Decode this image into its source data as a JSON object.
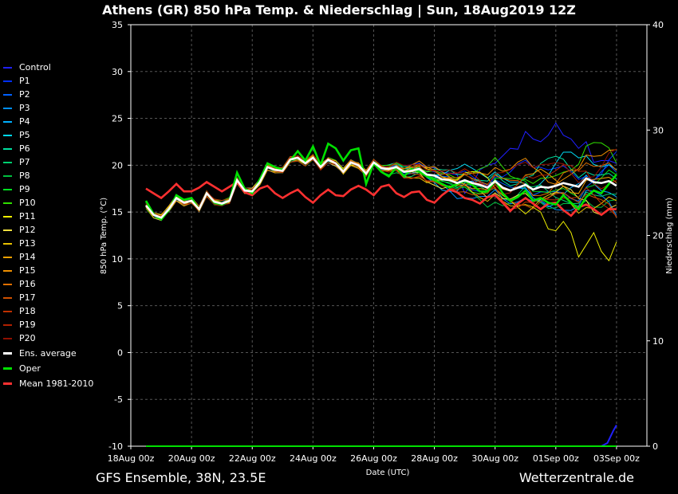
{
  "header": {
    "title": "Athens  (GR)  850 hPa Temp. & Niederschlag | Sun, 18Aug2019 12Z"
  },
  "footer": {
    "left": "GFS Ensemble, 38N, 23.5E",
    "right": "Wetterzentrale.de"
  },
  "chart_data": {
    "type": "line",
    "xlabel": "Date (UTC)",
    "ylabel": "850 hPa Temp. (°C)",
    "y2label": "Niederschlag (mm)",
    "ylim": [
      -10,
      35
    ],
    "y2lim": [
      0,
      40
    ],
    "yticks": [
      35,
      30,
      25,
      20,
      15,
      10,
      5,
      0,
      -5,
      -10
    ],
    "y2ticks": [
      40,
      30,
      20,
      10,
      0
    ],
    "xticks": [
      "18Aug 00z",
      "20Aug 00z",
      "22Aug 00z",
      "24Aug 00z",
      "26Aug 00z",
      "28Aug 00z",
      "30Aug 00z",
      "01Sep 00z",
      "03Sep 00z"
    ],
    "x_start": "18Aug 00z",
    "x_end": "03Sep 24z",
    "grid": true,
    "legend_position": "left",
    "series": [
      {
        "name": "Control",
        "color": "#2020ff"
      },
      {
        "name": "P1",
        "color": "#0030ff"
      },
      {
        "name": "P2",
        "color": "#0060ff"
      },
      {
        "name": "P3",
        "color": "#0090ff"
      },
      {
        "name": "P4",
        "color": "#00b0ff"
      },
      {
        "name": "P5",
        "color": "#00d8f0"
      },
      {
        "name": "P6",
        "color": "#00e0a0"
      },
      {
        "name": "P7",
        "color": "#00d070"
      },
      {
        "name": "P8",
        "color": "#00c040"
      },
      {
        "name": "P9",
        "color": "#00e020"
      },
      {
        "name": "P10",
        "color": "#30e000"
      },
      {
        "name": "P11",
        "color": "#f0f000"
      },
      {
        "name": "P12",
        "color": "#f0e040"
      },
      {
        "name": "P13",
        "color": "#e8c000"
      },
      {
        "name": "P14",
        "color": "#f0a000"
      },
      {
        "name": "P15",
        "color": "#f09000"
      },
      {
        "name": "P16",
        "color": "#e07000"
      },
      {
        "name": "P17",
        "color": "#d05000"
      },
      {
        "name": "P18",
        "color": "#c03000"
      },
      {
        "name": "P19",
        "color": "#b02000"
      },
      {
        "name": "P20",
        "color": "#901000"
      },
      {
        "name": "Ens. average",
        "color": "#ffffff"
      },
      {
        "name": "Oper",
        "color": "#00e000"
      },
      {
        "name": "Mean 1981-2010",
        "color": "#ff3030"
      }
    ],
    "oper": {
      "x_days": [
        0.5,
        0.75,
        1,
        1.25,
        1.5,
        1.75,
        2,
        2.25,
        2.5,
        2.75,
        3,
        3.25,
        3.5,
        3.75,
        4,
        4.25,
        4.5,
        4.75,
        5,
        5.25,
        5.5,
        5.75,
        6,
        6.25,
        6.5,
        6.75,
        7,
        7.25,
        7.5,
        7.75,
        8,
        8.25,
        8.5,
        8.75,
        9,
        9.25,
        9.5,
        9.75,
        10,
        10.25,
        10.5,
        10.75,
        11,
        11.25,
        11.5,
        11.75,
        12,
        12.25,
        12.5,
        12.75,
        13,
        13.25,
        13.5,
        13.75,
        14,
        14.25,
        14.5,
        14.75,
        15,
        15.25,
        15.5,
        15.75,
        16
      ],
      "values": [
        16.2,
        14.8,
        14.2,
        15.2,
        16.8,
        16.3,
        16.5,
        15.3,
        17.0,
        16.0,
        15.8,
        16.2,
        19.2,
        17.5,
        17.0,
        18.5,
        20.2,
        19.8,
        19.5,
        20.5,
        21.5,
        20.5,
        22.0,
        20.0,
        22.3,
        21.8,
        20.5,
        21.6,
        21.8,
        18.0,
        20.2,
        19.3,
        18.8,
        19.8,
        18.8,
        19.6,
        19.3,
        18.8,
        18.4,
        18.0,
        17.6,
        18.0,
        18.3,
        17.9,
        17.2,
        17.2,
        18.4,
        17.0,
        16.2,
        16.6,
        17.3,
        16.2,
        16.5,
        16.0,
        15.8,
        16.8,
        16.0,
        15.3,
        16.6,
        17.3,
        17.0,
        18.0,
        19.0
      ]
    },
    "ens_average": {
      "x_days": [
        0.5,
        0.75,
        1,
        1.25,
        1.5,
        1.75,
        2,
        2.25,
        2.5,
        2.75,
        3,
        3.25,
        3.5,
        3.75,
        4,
        4.25,
        4.5,
        4.75,
        5,
        5.25,
        5.5,
        5.75,
        6,
        6.25,
        6.5,
        6.75,
        7,
        7.25,
        7.5,
        7.75,
        8,
        8.25,
        8.5,
        8.75,
        9,
        9.25,
        9.5,
        9.75,
        10,
        10.25,
        10.5,
        10.75,
        11,
        11.25,
        11.5,
        11.75,
        12,
        12.25,
        12.5,
        12.75,
        13,
        13.25,
        13.5,
        13.75,
        14,
        14.25,
        14.5,
        14.75,
        15,
        15.25,
        15.5,
        15.75,
        16
      ],
      "values": [
        15.7,
        14.7,
        14.4,
        15.3,
        16.5,
        16.0,
        16.2,
        15.3,
        17.0,
        16.1,
        15.9,
        16.2,
        18.4,
        17.3,
        17.2,
        18.2,
        19.8,
        19.5,
        19.4,
        20.6,
        20.8,
        20.2,
        20.8,
        19.8,
        20.6,
        20.2,
        19.3,
        20.3,
        20.0,
        19.1,
        20.3,
        19.7,
        19.6,
        19.8,
        19.3,
        19.4,
        19.6,
        19.0,
        18.9,
        18.5,
        18.4,
        18.1,
        18.4,
        18.1,
        17.9,
        17.6,
        18.3,
        17.6,
        17.3,
        17.6,
        17.9,
        17.4,
        17.7,
        17.6,
        17.8,
        18.1,
        17.9,
        17.7,
        18.6,
        18.2,
        18.1,
        18.3,
        17.8
      ]
    },
    "climate_mean": {
      "x_days": [
        0.5,
        0.75,
        1,
        1.25,
        1.5,
        1.75,
        2,
        2.25,
        2.5,
        2.75,
        3,
        3.25,
        3.5,
        3.75,
        4,
        4.25,
        4.5,
        4.75,
        5,
        5.25,
        5.5,
        5.75,
        6,
        6.25,
        6.5,
        6.75,
        7,
        7.25,
        7.5,
        7.75,
        8,
        8.25,
        8.5,
        8.75,
        9,
        9.25,
        9.5,
        9.75,
        10,
        10.25,
        10.5,
        10.75,
        11,
        11.25,
        11.5,
        11.75,
        12,
        12.25,
        12.5,
        12.75,
        13,
        13.25,
        13.5,
        13.75,
        14,
        14.25,
        14.5,
        14.75,
        15,
        15.25,
        15.5,
        15.75,
        16
      ],
      "values": [
        17.5,
        17.0,
        16.5,
        17.2,
        18.0,
        17.2,
        17.2,
        17.6,
        18.2,
        17.7,
        17.2,
        17.7,
        18.2,
        17.1,
        16.8,
        17.5,
        17.8,
        17.0,
        16.5,
        17.0,
        17.4,
        16.6,
        16.0,
        16.8,
        17.4,
        16.8,
        16.7,
        17.4,
        17.8,
        17.4,
        16.8,
        17.7,
        17.9,
        17.0,
        16.6,
        17.1,
        17.2,
        16.3,
        16.0,
        16.8,
        17.4,
        17.1,
        16.5,
        16.3,
        15.9,
        16.6,
        16.8,
        16.0,
        15.1,
        15.9,
        16.5,
        15.9,
        15.3,
        15.9,
        16.0,
        15.2,
        14.6,
        15.5,
        15.8,
        15.3,
        14.7,
        15.3,
        15.3
      ]
    },
    "members_note_values": {
      "ctrl_high_late": [
        17.0,
        18.0,
        19.5,
        20.0,
        20.2,
        21.0,
        21.8,
        21.7,
        23.6,
        22.8,
        22.5,
        23.2,
        24.5,
        23.2,
        22.8,
        21.8,
        22.5,
        20.3,
        20.5,
        20.5,
        20.2
      ],
      "p11_low_late": [
        17.5,
        16.8,
        16.2,
        15.5,
        14.8,
        15.5,
        15.0,
        13.2,
        13.0,
        14.0,
        12.8,
        10.2,
        11.5,
        12.8,
        10.8,
        9.8,
        11.8
      ]
    },
    "precip_mm": {
      "x_days": [
        0.5,
        15.5,
        15.7,
        15.9,
        16.0
      ],
      "values": [
        0,
        0,
        0.3,
        1.5,
        2.0
      ]
    }
  }
}
